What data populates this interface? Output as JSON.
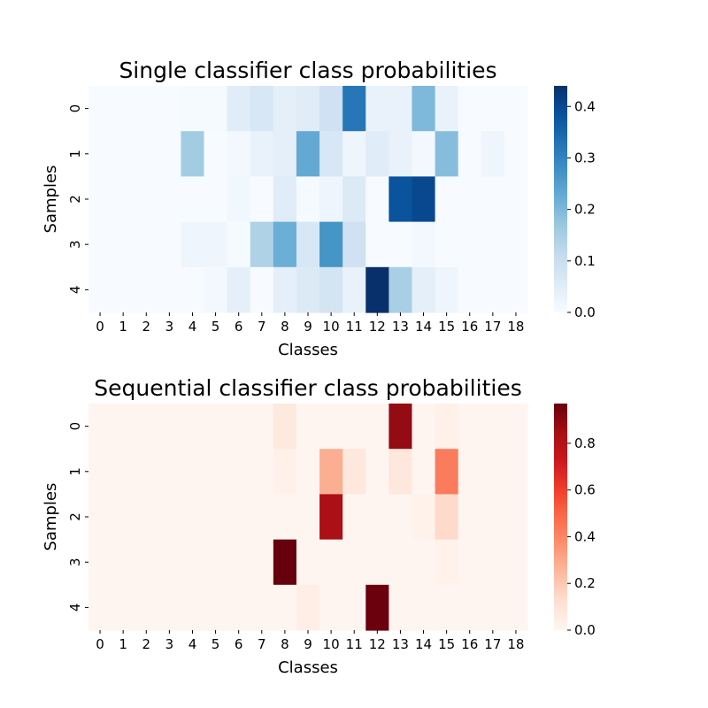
{
  "chart_data": [
    {
      "type": "heatmap",
      "title": "Single classifier class probabilities",
      "xlabel": "Classes",
      "ylabel": "Samples",
      "x_categories": [
        "0",
        "1",
        "2",
        "3",
        "4",
        "5",
        "6",
        "7",
        "8",
        "9",
        "10",
        "11",
        "12",
        "13",
        "14",
        "15",
        "16",
        "17",
        "18"
      ],
      "y_categories": [
        "0",
        "1",
        "2",
        "3",
        "4"
      ],
      "colormap": "Blues",
      "colormap_stops": [
        "#f7fbff",
        "#deebf7",
        "#c6dbef",
        "#9ecae1",
        "#6baed6",
        "#4292c6",
        "#2171b5",
        "#08519c",
        "#08306b"
      ],
      "vmin": 0.0,
      "vmax": 0.44,
      "colorbar_ticks": [
        0.0,
        0.1,
        0.2,
        0.3,
        0.4
      ],
      "colorbar_tick_labels": [
        "0.0",
        "0.1",
        "0.2",
        "0.3",
        "0.4"
      ],
      "values": [
        [
          0.0,
          0.0,
          0.0,
          0.0,
          0.005,
          0.005,
          0.05,
          0.07,
          0.04,
          0.05,
          0.09,
          0.32,
          0.03,
          0.03,
          0.2,
          0.03,
          0.0,
          0.0,
          0.0
        ],
        [
          0.0,
          0.0,
          0.0,
          0.0,
          0.16,
          0.0,
          0.01,
          0.03,
          0.04,
          0.23,
          0.07,
          0.02,
          0.05,
          0.03,
          0.01,
          0.19,
          0.0,
          0.02,
          0.0
        ],
        [
          0.0,
          0.0,
          0.0,
          0.0,
          0.0,
          0.0,
          0.015,
          0.0,
          0.05,
          0.005,
          0.02,
          0.06,
          0.0,
          0.38,
          0.4,
          0.0,
          0.0,
          0.0,
          0.0
        ],
        [
          0.0,
          0.0,
          0.0,
          0.0,
          0.02,
          0.02,
          0.005,
          0.14,
          0.22,
          0.07,
          0.27,
          0.09,
          0.0,
          0.0,
          0.01,
          0.0,
          0.0,
          0.0,
          0.0
        ],
        [
          0.0,
          0.0,
          0.0,
          0.0,
          0.0,
          0.01,
          0.04,
          0.0,
          0.04,
          0.06,
          0.08,
          0.03,
          0.44,
          0.15,
          0.04,
          0.02,
          0.0,
          0.0,
          0.0
        ]
      ]
    },
    {
      "type": "heatmap",
      "title": "Sequential classifier class probabilities",
      "xlabel": "Classes",
      "ylabel": "Samples",
      "x_categories": [
        "0",
        "1",
        "2",
        "3",
        "4",
        "5",
        "6",
        "7",
        "8",
        "9",
        "10",
        "11",
        "12",
        "13",
        "14",
        "15",
        "16",
        "17",
        "18"
      ],
      "y_categories": [
        "0",
        "1",
        "2",
        "3",
        "4"
      ],
      "colormap": "Reds",
      "colormap_stops": [
        "#fff5f0",
        "#fee0d2",
        "#fcbba1",
        "#fc9272",
        "#fb6a4a",
        "#ef3b2c",
        "#cb181d",
        "#a50f15",
        "#67000d"
      ],
      "vmin": 0.0,
      "vmax": 0.97,
      "colorbar_ticks": [
        0.0,
        0.2,
        0.4,
        0.6,
        0.8
      ],
      "colorbar_tick_labels": [
        "0.0",
        "0.2",
        "0.4",
        "0.6",
        "0.8"
      ],
      "values": [
        [
          0.0,
          0.0,
          0.0,
          0.0,
          0.0,
          0.0,
          0.0,
          0.0,
          0.07,
          0.0,
          0.0,
          0.0,
          0.0,
          0.88,
          0.0,
          0.03,
          0.0,
          0.0,
          0.0
        ],
        [
          0.0,
          0.0,
          0.0,
          0.0,
          0.0,
          0.0,
          0.0,
          0.0,
          0.03,
          0.0,
          0.28,
          0.08,
          0.0,
          0.08,
          0.0,
          0.43,
          0.0,
          0.0,
          0.0
        ],
        [
          0.0,
          0.0,
          0.0,
          0.0,
          0.0,
          0.0,
          0.0,
          0.0,
          0.0,
          0.0,
          0.83,
          0.0,
          0.0,
          0.0,
          0.02,
          0.14,
          0.0,
          0.0,
          0.0
        ],
        [
          0.0,
          0.0,
          0.0,
          0.0,
          0.0,
          0.0,
          0.0,
          0.0,
          0.97,
          0.0,
          0.0,
          0.0,
          0.0,
          0.0,
          0.0,
          0.02,
          0.0,
          0.0,
          0.0
        ],
        [
          0.0,
          0.0,
          0.0,
          0.0,
          0.0,
          0.0,
          0.0,
          0.0,
          0.0,
          0.04,
          0.0,
          0.0,
          0.96,
          0.0,
          0.0,
          0.0,
          0.0,
          0.0,
          0.0
        ]
      ]
    }
  ]
}
